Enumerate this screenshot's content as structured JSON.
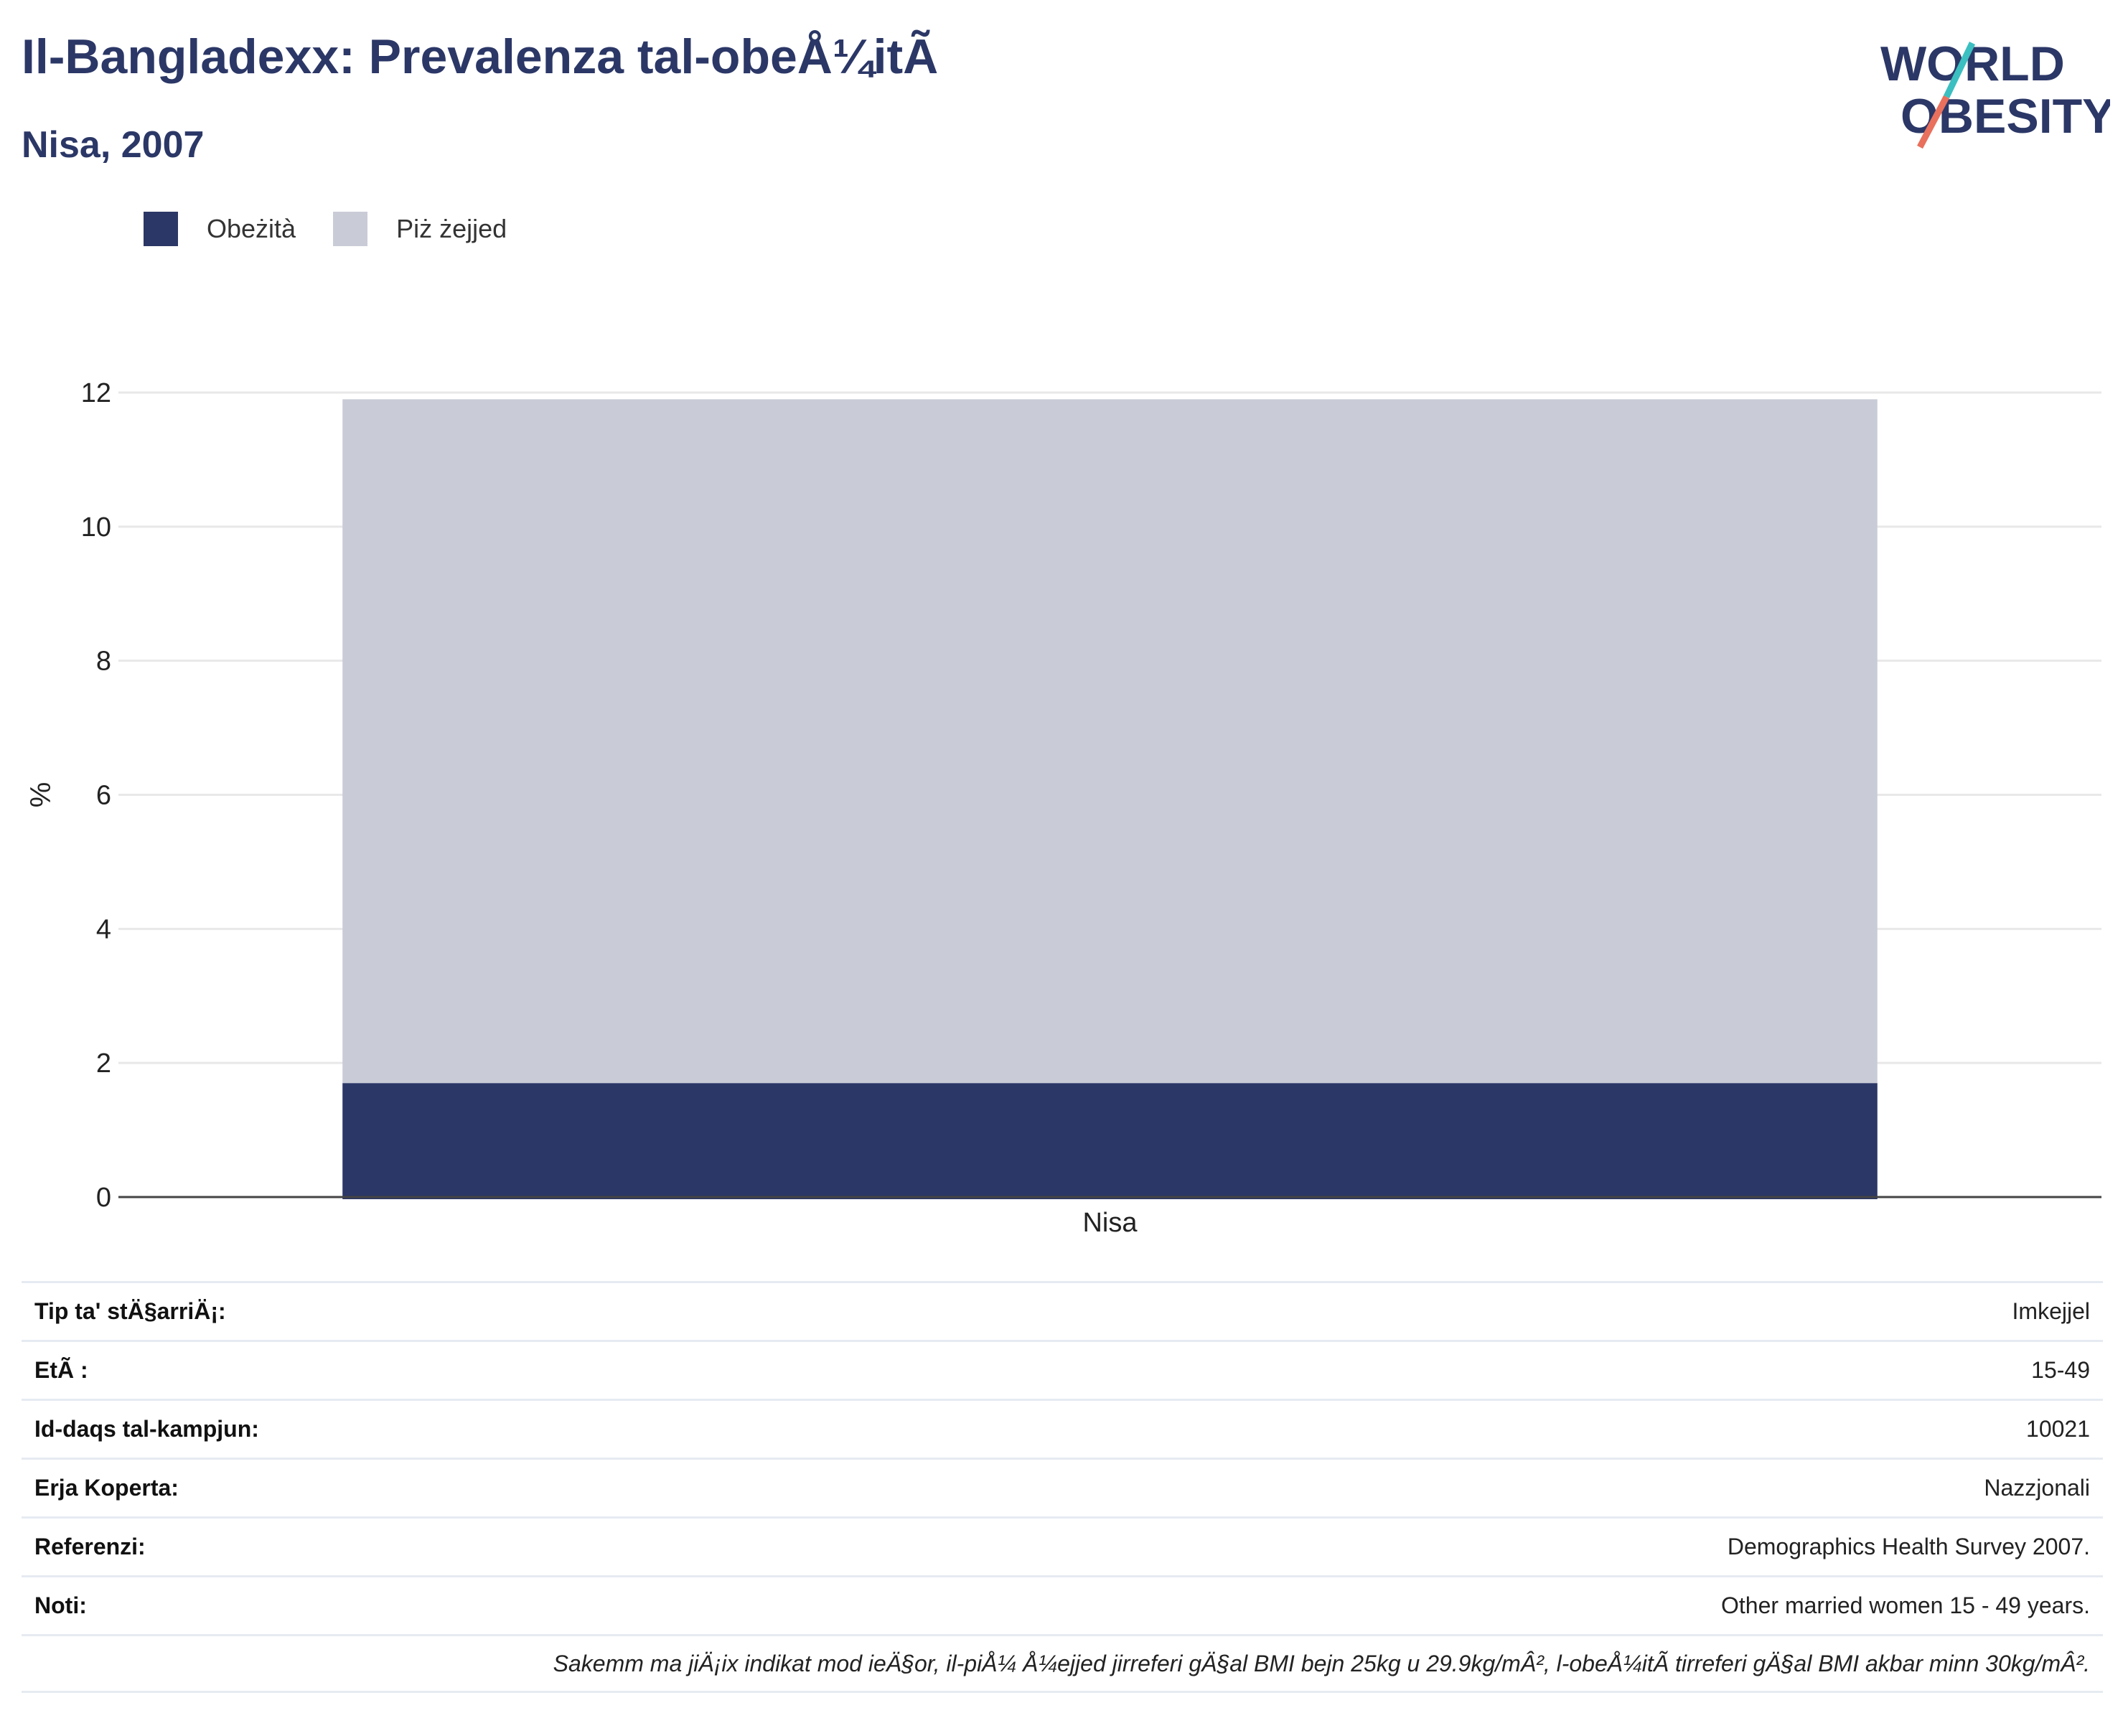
{
  "header": {
    "title": "Il-Bangladexx: Prevalenza tal-obeÅ¼itÃ",
    "subtitle": "Nisa, 2007"
  },
  "logo": {
    "line1": "WORLD",
    "line2": "OBESITY",
    "accent1": "#3cbfc0",
    "accent2": "#e8705c",
    "color": "#2b3766"
  },
  "legend": [
    {
      "label": "Obeżità",
      "color": "#2b3766"
    },
    {
      "label": "Piż żejjed",
      "color": "#c9ccd7"
    }
  ],
  "chart_data": {
    "type": "bar",
    "stacked": true,
    "categories": [
      "Nisa"
    ],
    "series": [
      {
        "name": "Obeżità",
        "values": [
          1.7
        ],
        "color": "#2b3766"
      },
      {
        "name": "Piż żejjed",
        "values": [
          10.2
        ],
        "color": "#c9ccd7"
      }
    ],
    "ylabel": "%",
    "ylim": [
      0,
      12
    ],
    "yticks": [
      0,
      2,
      4,
      6,
      8,
      10,
      12
    ],
    "grid": true
  },
  "info": {
    "rows": [
      {
        "label": "Tip ta' stÄ§arriÄ¡:",
        "value": "Imkejjel"
      },
      {
        "label": "EtÃ :",
        "value": "15-49"
      },
      {
        "label": "Id-daqs tal-kampjun:",
        "value": "10021"
      },
      {
        "label": "Erja Koperta:",
        "value": "Nazzjonali"
      },
      {
        "label": "Referenzi:",
        "value": "Demographics Health Survey 2007."
      },
      {
        "label": "Noti:",
        "value": "Other married women 15 - 49 years."
      }
    ],
    "footnote": "Sakemm ma jiÄ¡ix indikat mod ieÄ§or, il-piÅ¼ Å¼ejjed jirreferi gÄ§al BMI bejn 25kg u 29.9kg/mÂ², l-obeÅ¼itÃ  tirreferi gÄ§al BMI akbar minn 30kg/mÂ²."
  }
}
